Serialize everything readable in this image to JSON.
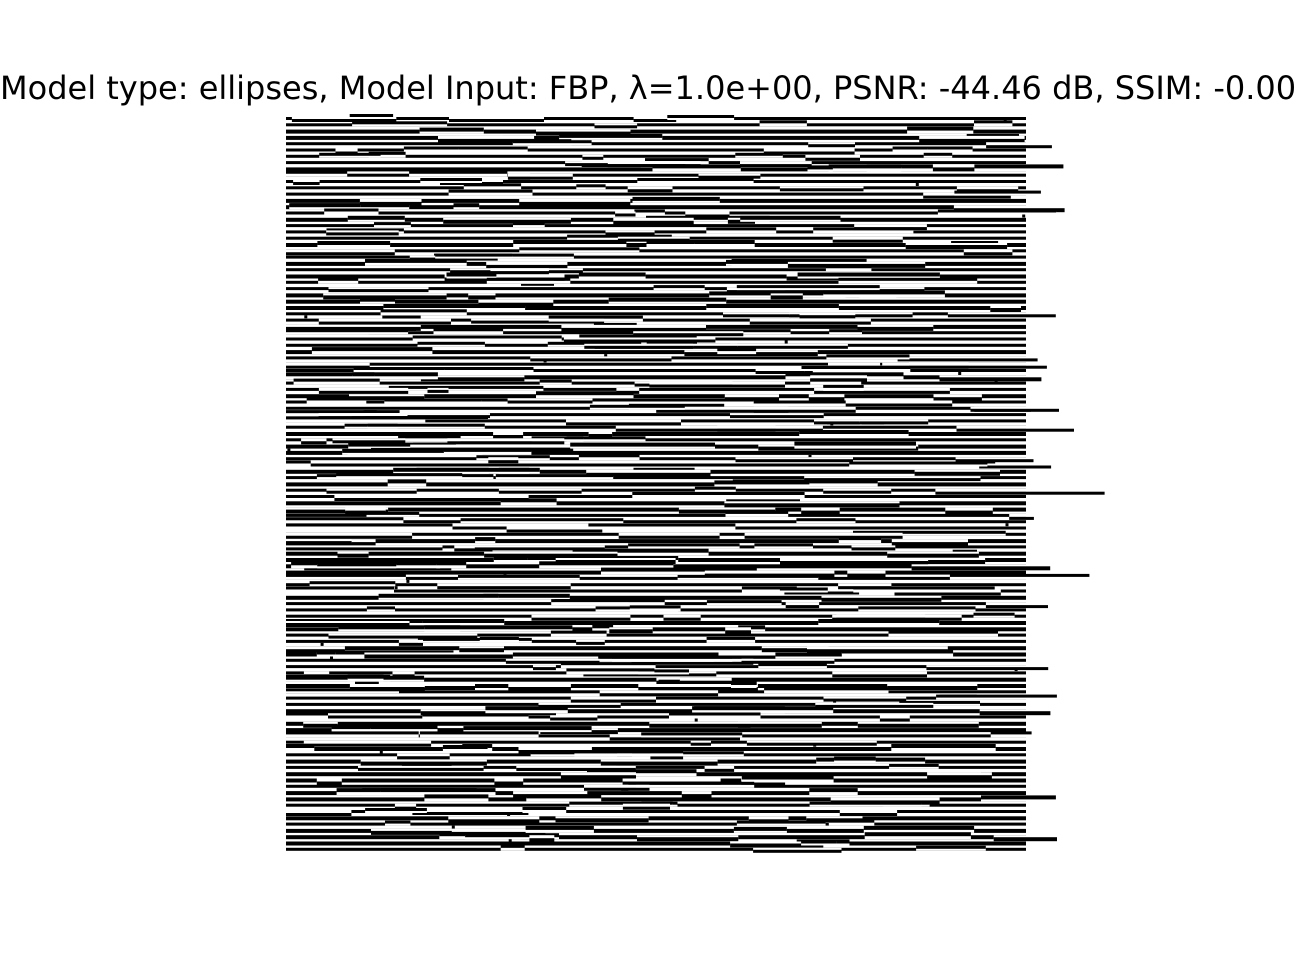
{
  "figure": {
    "title": "Model type: ellipses, Model Input: FBP, λ=1.0e+00, PSNR: -44.46 dB, SSIM: -0.00"
  },
  "image": {
    "description_icon": "striped-reconstruction-image",
    "colormap": "gray"
  }
}
